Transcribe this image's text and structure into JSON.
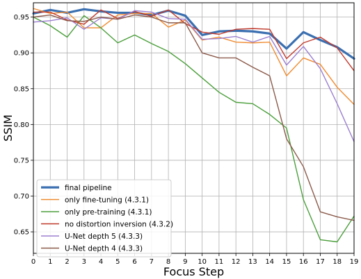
{
  "chart_data": {
    "type": "line",
    "title": "",
    "xlabel": "Focus Step",
    "ylabel": "SSIM",
    "x": [
      0,
      1,
      2,
      3,
      4,
      5,
      6,
      7,
      8,
      9,
      10,
      11,
      12,
      13,
      14,
      15,
      16,
      17,
      18,
      19
    ],
    "xlim": [
      0,
      19
    ],
    "ylim": [
      0.62,
      0.97
    ],
    "yticks": [
      0.65,
      0.7,
      0.75,
      0.8,
      0.85,
      0.9,
      0.95
    ],
    "ytick_labels": [
      "0.65",
      "0.70",
      "0.75",
      "0.80",
      "0.85",
      "0.90",
      "0.95"
    ],
    "xtick_labels": [
      "0",
      "1",
      "2",
      "3",
      "4",
      "5",
      "6",
      "7",
      "8",
      "9",
      "10",
      "11",
      "12",
      "13",
      "14",
      "15",
      "16",
      "17",
      "18",
      "19"
    ],
    "grid": true,
    "legend_position": "lower-left",
    "series": [
      {
        "name": "final pipeline",
        "color": "#3a6fb0",
        "width": 3.2,
        "values": [
          0.955,
          0.96,
          0.956,
          0.961,
          0.958,
          0.956,
          0.956,
          0.953,
          0.959,
          0.952,
          0.925,
          0.93,
          0.931,
          0.93,
          0.927,
          0.906,
          0.929,
          0.918,
          0.908,
          0.892
        ]
      },
      {
        "name": "only fine-tuning (4.3.1)",
        "color": "#f08a2e",
        "width": 1.4,
        "values": [
          0.962,
          0.955,
          0.957,
          0.935,
          0.935,
          0.953,
          0.955,
          0.955,
          0.936,
          0.946,
          0.918,
          0.922,
          0.915,
          0.914,
          0.915,
          0.868,
          0.893,
          0.884,
          0.852,
          0.828
        ]
      },
      {
        "name": "only pre-training (4.3.1)",
        "color": "#4a9e3a",
        "width": 1.4,
        "values": [
          0.95,
          0.938,
          0.922,
          0.952,
          0.935,
          0.914,
          0.925,
          0.913,
          0.902,
          0.885,
          0.865,
          0.845,
          0.831,
          0.829,
          0.814,
          0.795,
          0.695,
          0.639,
          0.636,
          0.672
        ]
      },
      {
        "name": "no distortion inversion (4.3.2)",
        "color": "#c0392b",
        "width": 1.4,
        "values": [
          0.957,
          0.957,
          0.946,
          0.94,
          0.96,
          0.948,
          0.958,
          0.951,
          0.96,
          0.941,
          0.929,
          0.926,
          0.933,
          0.934,
          0.933,
          0.892,
          0.914,
          0.922,
          0.907,
          0.875
        ]
      },
      {
        "name": "U-Net depth 5 (4.3.3)",
        "color": "#9b7fd0",
        "width": 1.4,
        "values": [
          0.943,
          0.945,
          0.949,
          0.933,
          0.949,
          0.947,
          0.959,
          0.957,
          0.948,
          0.947,
          0.919,
          0.92,
          0.923,
          0.915,
          0.923,
          0.883,
          0.909,
          0.878,
          0.829,
          0.776
        ]
      },
      {
        "name": "U-Net depth 4 (4.3.3)",
        "color": "#8b5a4a",
        "width": 1.4,
        "values": [
          0.95,
          0.953,
          0.945,
          0.944,
          0.95,
          0.947,
          0.953,
          0.95,
          0.942,
          0.942,
          0.9,
          0.893,
          0.893,
          0.88,
          0.868,
          0.78,
          0.741,
          0.678,
          0.671,
          0.666
        ]
      }
    ]
  }
}
